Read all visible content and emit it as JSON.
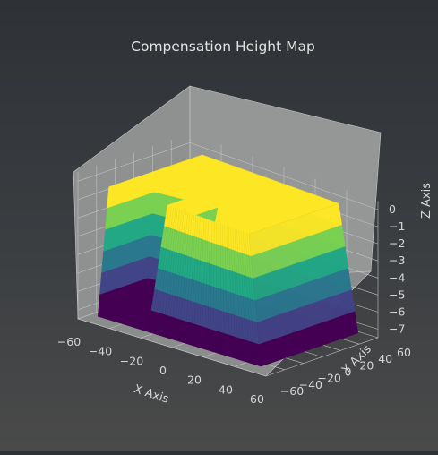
{
  "chart_data": {
    "type": "surface3d",
    "title": "Compensation Height Map",
    "xlabel": "X Axis",
    "ylabel": "Y Axis",
    "zlabel": "Z Axis",
    "xlim": [
      -60,
      60
    ],
    "ylim": [
      -60,
      60
    ],
    "zlim": [
      -7.5,
      0.5
    ],
    "xticks": [
      "−60",
      "−40",
      "−20",
      "0",
      "20",
      "40",
      "60"
    ],
    "yticks": [
      "−60",
      "−40",
      "−20",
      "0",
      "20",
      "40",
      "60"
    ],
    "zticks": [
      "0",
      "−1",
      "−2",
      "−3",
      "−4",
      "−5",
      "−6",
      "−7"
    ],
    "xtick_values": [
      -60,
      -40,
      -20,
      0,
      20,
      40,
      60
    ],
    "ytick_values": [
      -60,
      -40,
      -20,
      0,
      20,
      40,
      60
    ],
    "ztick_values": [
      0,
      -1,
      -2,
      -3,
      -4,
      -5,
      -6,
      -7
    ],
    "surface": {
      "description_levels": "flat plateau at top, sloped walls down to floor",
      "plateau_z": 0,
      "floor_z": -7.3,
      "outer_boundary_x": [
        -52,
        52
      ],
      "outer_boundary_y": [
        -52,
        52
      ],
      "plateau_corners": [
        {
          "x": 42,
          "y": -48
        },
        {
          "x": 42,
          "y": 48
        },
        {
          "x": -45,
          "y": 48
        },
        {
          "x": -45,
          "y": -2
        },
        {
          "x": -10,
          "y": 10
        },
        {
          "x": -10,
          "y": -48
        }
      ],
      "colormap": "viridis",
      "band_colors": [
        "#fde725",
        "#7ad151",
        "#22a884",
        "#2a788e",
        "#414487",
        "#440154"
      ]
    }
  }
}
